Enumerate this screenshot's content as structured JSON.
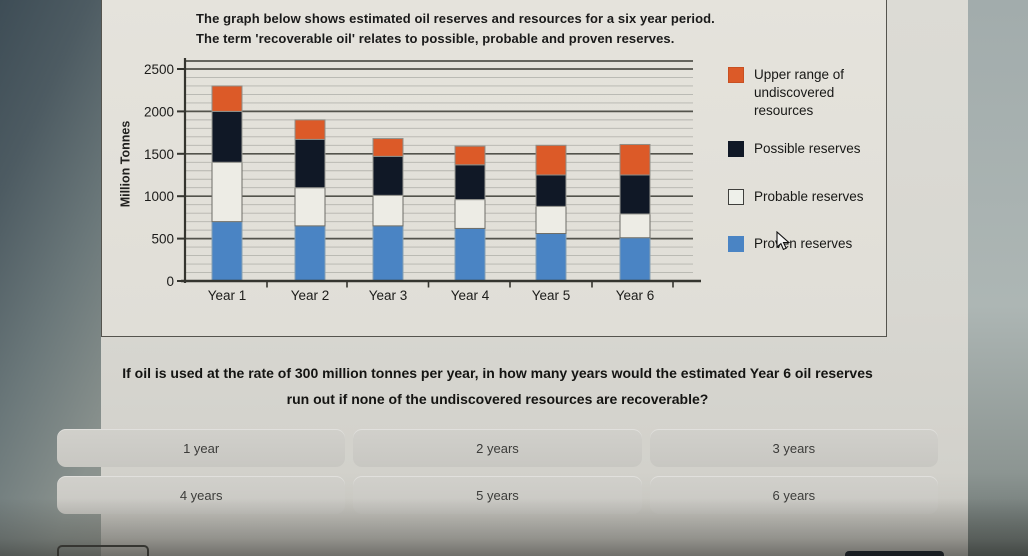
{
  "panel": {
    "title_line1": "The graph below shows estimated oil reserves and resources for a six year period.",
    "title_line2": "The term 'recoverable oil' relates to possible, probable and proven reserves."
  },
  "chart_data": {
    "type": "bar",
    "stacked": true,
    "categories": [
      "Year 1",
      "Year 2",
      "Year 3",
      "Year 4",
      "Year 5",
      "Year 6"
    ],
    "series": [
      {
        "name": "Proven reserves",
        "color": "#4a84c4",
        "border": "#87a0b4",
        "values": [
          700,
          650,
          650,
          620,
          560,
          510
        ]
      },
      {
        "name": "Probable reserves",
        "color": "#edece5",
        "border": "#6d6d67",
        "values": [
          700,
          450,
          360,
          340,
          320,
          280
        ]
      },
      {
        "name": "Possible reserves",
        "color": "#101826",
        "border": "#9a9a94",
        "values": [
          600,
          570,
          460,
          410,
          370,
          460
        ]
      },
      {
        "name": "Upper range of undiscovered resources",
        "color": "#dc5a28",
        "border": "#c8disabled",
        "values": [
          300,
          230,
          210,
          220,
          350,
          360
        ]
      }
    ],
    "ylabel": "Million Tonnes",
    "xlabel": "",
    "yticks": [
      0,
      500,
      1000,
      1500,
      2000,
      2500
    ],
    "ylim": [
      0,
      2500
    ],
    "minor_gridline_step": 100,
    "major_gridline_step": 500,
    "grid": true,
    "legend_position": "right"
  },
  "legend": {
    "items": [
      {
        "label": "Upper range of undiscovered resources",
        "swatch_color": "#dc5a28",
        "swatch_border": "#c85022"
      },
      {
        "label": "Possible reserves",
        "swatch_color": "#101826",
        "swatch_border": "#101826"
      },
      {
        "label": "Probable reserves",
        "swatch_color": "#eef0ea",
        "swatch_border": "#3f3f3c"
      },
      {
        "label": "Proven reserves",
        "swatch_color": "#4a84c4",
        "swatch_border": "#4a84c4"
      }
    ]
  },
  "question": {
    "line1": "If oil is used at the rate of 300 million tonnes per year, in how many years would the estimated Year 6 oil reserves",
    "line2": "run out if none of the undiscovered resources are recoverable?"
  },
  "answers": {
    "options": [
      "1 year",
      "2 years",
      "3 years",
      "4 years",
      "5 years",
      "6 years"
    ]
  },
  "icons": {
    "cursor": "arrow-cursor"
  }
}
